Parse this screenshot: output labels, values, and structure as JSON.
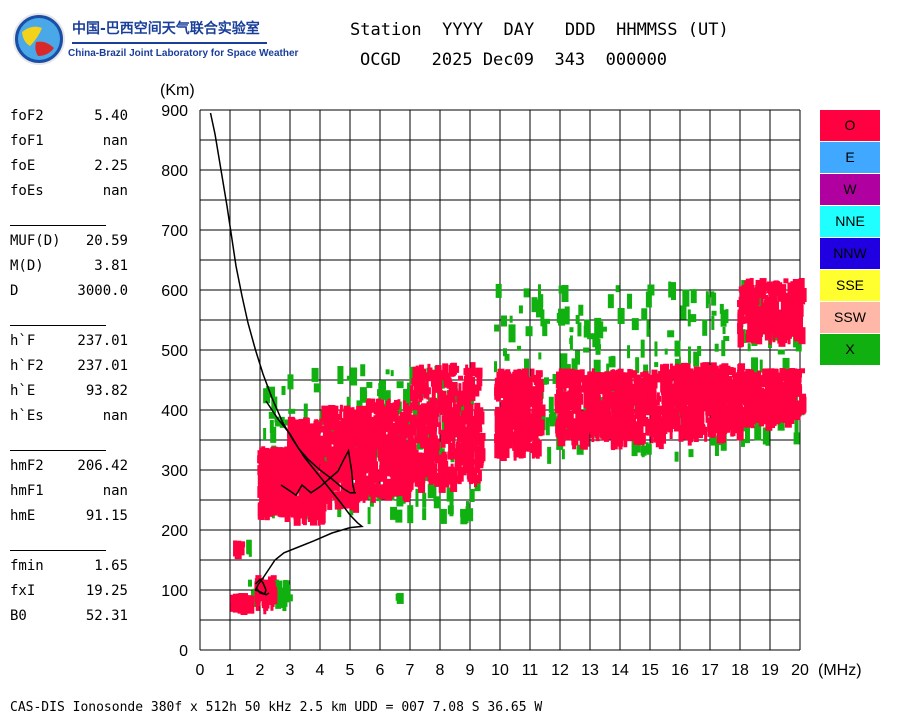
{
  "logo": {
    "title_cn": "中国-巴西空间天气联合实验室",
    "title_en": "China-Brazil Joint Laboratory for Space Weather"
  },
  "header": {
    "line1": "Station  YYYY  DAY   DDD  HHMMSS (UT)",
    "line2": "OCGD   2025 Dec09  343  000000"
  },
  "params": [
    {
      "key": "foF2",
      "value": "5.40"
    },
    {
      "key": "foF1",
      "value": "nan"
    },
    {
      "key": "foE",
      "value": "2.25"
    },
    {
      "key": "foEs",
      "value": "nan"
    },
    {
      "key": "MUF(D)",
      "value": "20.59"
    },
    {
      "key": "M(D)",
      "value": "3.81"
    },
    {
      "key": "D",
      "value": "3000.0"
    },
    {
      "key": "h`F",
      "value": "237.01"
    },
    {
      "key": "h`F2",
      "value": "237.01"
    },
    {
      "key": "h`E",
      "value": "93.82"
    },
    {
      "key": "h`Es",
      "value": "nan"
    },
    {
      "key": "hmF2",
      "value": "206.42"
    },
    {
      "key": "hmF1",
      "value": "nan"
    },
    {
      "key": "hmE",
      "value": "91.15"
    },
    {
      "key": "fmin",
      "value": "1.65"
    },
    {
      "key": "fxI",
      "value": "19.25"
    },
    {
      "key": "B0",
      "value": "52.31"
    }
  ],
  "legend": [
    {
      "label": "O",
      "color": "#ff0040"
    },
    {
      "label": "E",
      "color": "#40a8ff"
    },
    {
      "label": "W",
      "color": "#b000a0"
    },
    {
      "label": "NNE",
      "color": "#20ffff"
    },
    {
      "label": "NNW",
      "color": "#2000e0"
    },
    {
      "label": "SSE",
      "color": "#ffff30"
    },
    {
      "label": "SSW",
      "color": "#ffb8a8"
    },
    {
      "label": "X",
      "color": "#10b010"
    }
  ],
  "footer": "CAS-DIS Ionosonde 380f x 512h 50 kHz 2.5 km UDD = 007 7.08 S 36.65 W",
  "chart_data": {
    "type": "scatter",
    "ylabel": "(Km)",
    "xlabel": "(MHz)",
    "xlim": [
      0,
      20
    ],
    "ylim": [
      0,
      900
    ],
    "xticks": [
      "0",
      "1",
      "2",
      "3",
      "4",
      "5",
      "6",
      "7",
      "8",
      "9",
      "10",
      "11",
      "12",
      "13",
      "14",
      "15",
      "16",
      "17",
      "18",
      "19",
      "20"
    ],
    "yticks": [
      "0",
      "100",
      "200",
      "300",
      "400",
      "500",
      "600",
      "700",
      "800",
      "900"
    ],
    "grid": true,
    "o_clusters": [
      {
        "f": [
          1.0,
          1.6
        ],
        "h": [
          88,
          95
        ],
        "n": 40
      },
      {
        "f": [
          1.8,
          2.4
        ],
        "h": [
          85,
          125
        ],
        "n": 60
      },
      {
        "f": [
          1.1,
          1.3
        ],
        "h": [
          178,
          183
        ],
        "n": 6
      },
      {
        "f": [
          1.9,
          2.9
        ],
        "h": [
          240,
          340
        ],
        "n": 260
      },
      {
        "f": [
          2.9,
          4.0
        ],
        "h": [
          230,
          390
        ],
        "n": 320
      },
      {
        "f": [
          4.0,
          5.5
        ],
        "h": [
          255,
          410
        ],
        "n": 320
      },
      {
        "f": [
          5.5,
          7.0
        ],
        "h": [
          270,
          420
        ],
        "n": 300
      },
      {
        "f": [
          7.0,
          9.3
        ],
        "h": [
          290,
          480
        ],
        "n": 360
      },
      {
        "f": [
          9.8,
          11.3
        ],
        "h": [
          340,
          470
        ],
        "n": 260
      },
      {
        "f": [
          11.8,
          15.3
        ],
        "h": [
          360,
          470
        ],
        "n": 500
      },
      {
        "f": [
          15.3,
          18.0
        ],
        "h": [
          370,
          480
        ],
        "n": 420
      },
      {
        "f": [
          18.0,
          20.0
        ],
        "h": [
          395,
          470
        ],
        "n": 260
      },
      {
        "f": [
          17.9,
          20.0
        ],
        "h": [
          530,
          620
        ],
        "n": 260
      }
    ],
    "x_clusters": [
      {
        "f": [
          1.6,
          2.9
        ],
        "h": [
          85,
          120
        ],
        "n": 30
      },
      {
        "f": [
          1.5,
          1.7
        ],
        "h": [
          178,
          184
        ],
        "n": 3
      },
      {
        "f": [
          2.0,
          9.2
        ],
        "h": [
          230,
          480
        ],
        "n": 220
      },
      {
        "f": [
          9.8,
          20.0
        ],
        "h": [
          330,
          620
        ],
        "n": 240
      },
      {
        "f": [
          6.5,
          6.7
        ],
        "h": [
          93,
          98
        ],
        "n": 2
      }
    ],
    "profile": [
      [
        0.35,
        895
      ],
      [
        0.5,
        860
      ],
      [
        0.7,
        800
      ],
      [
        0.9,
        740
      ],
      [
        1.05,
        690
      ],
      [
        1.2,
        640
      ],
      [
        1.4,
        590
      ],
      [
        1.6,
        545
      ],
      [
        1.85,
        500
      ],
      [
        2.1,
        460
      ],
      [
        2.4,
        420
      ],
      [
        2.75,
        380
      ],
      [
        3.1,
        350
      ],
      [
        3.5,
        320
      ],
      [
        3.9,
        295
      ],
      [
        4.3,
        270
      ],
      [
        4.7,
        245
      ],
      [
        5.0,
        225
      ],
      [
        5.25,
        212
      ],
      [
        5.4,
        206
      ],
      [
        5.0,
        204
      ],
      [
        4.4,
        195
      ],
      [
        3.8,
        182
      ],
      [
        3.2,
        170
      ],
      [
        2.8,
        162
      ],
      [
        2.5,
        150
      ],
      [
        2.3,
        135
      ],
      [
        2.1,
        120
      ],
      [
        1.95,
        110
      ],
      [
        1.85,
        100
      ],
      [
        2.05,
        96
      ],
      [
        2.2,
        92
      ],
      [
        2.3,
        95
      ]
    ],
    "trace_upper": [
      [
        2.2,
        415
      ],
      [
        2.6,
        385
      ],
      [
        3.0,
        360
      ],
      [
        3.3,
        335
      ],
      [
        3.6,
        318
      ],
      [
        4.0,
        300
      ],
      [
        4.4,
        285
      ],
      [
        4.8,
        268
      ],
      [
        5.0,
        262
      ],
      [
        5.2,
        262
      ]
    ],
    "trace_lower": [
      [
        2.7,
        275
      ],
      [
        3.0,
        265
      ],
      [
        3.2,
        258
      ],
      [
        3.4,
        275
      ],
      [
        3.7,
        262
      ],
      [
        4.0,
        272
      ],
      [
        4.3,
        285
      ],
      [
        4.6,
        298
      ],
      [
        4.8,
        318
      ],
      [
        4.95,
        332
      ],
      [
        5.05,
        300
      ],
      [
        5.1,
        275
      ],
      [
        5.15,
        262
      ]
    ],
    "e_trace": [
      [
        1.85,
        110
      ],
      [
        2.0,
        118
      ],
      [
        2.1,
        112
      ],
      [
        2.2,
        100
      ],
      [
        2.15,
        93
      ],
      [
        2.0,
        95
      ],
      [
        1.9,
        102
      ]
    ]
  }
}
